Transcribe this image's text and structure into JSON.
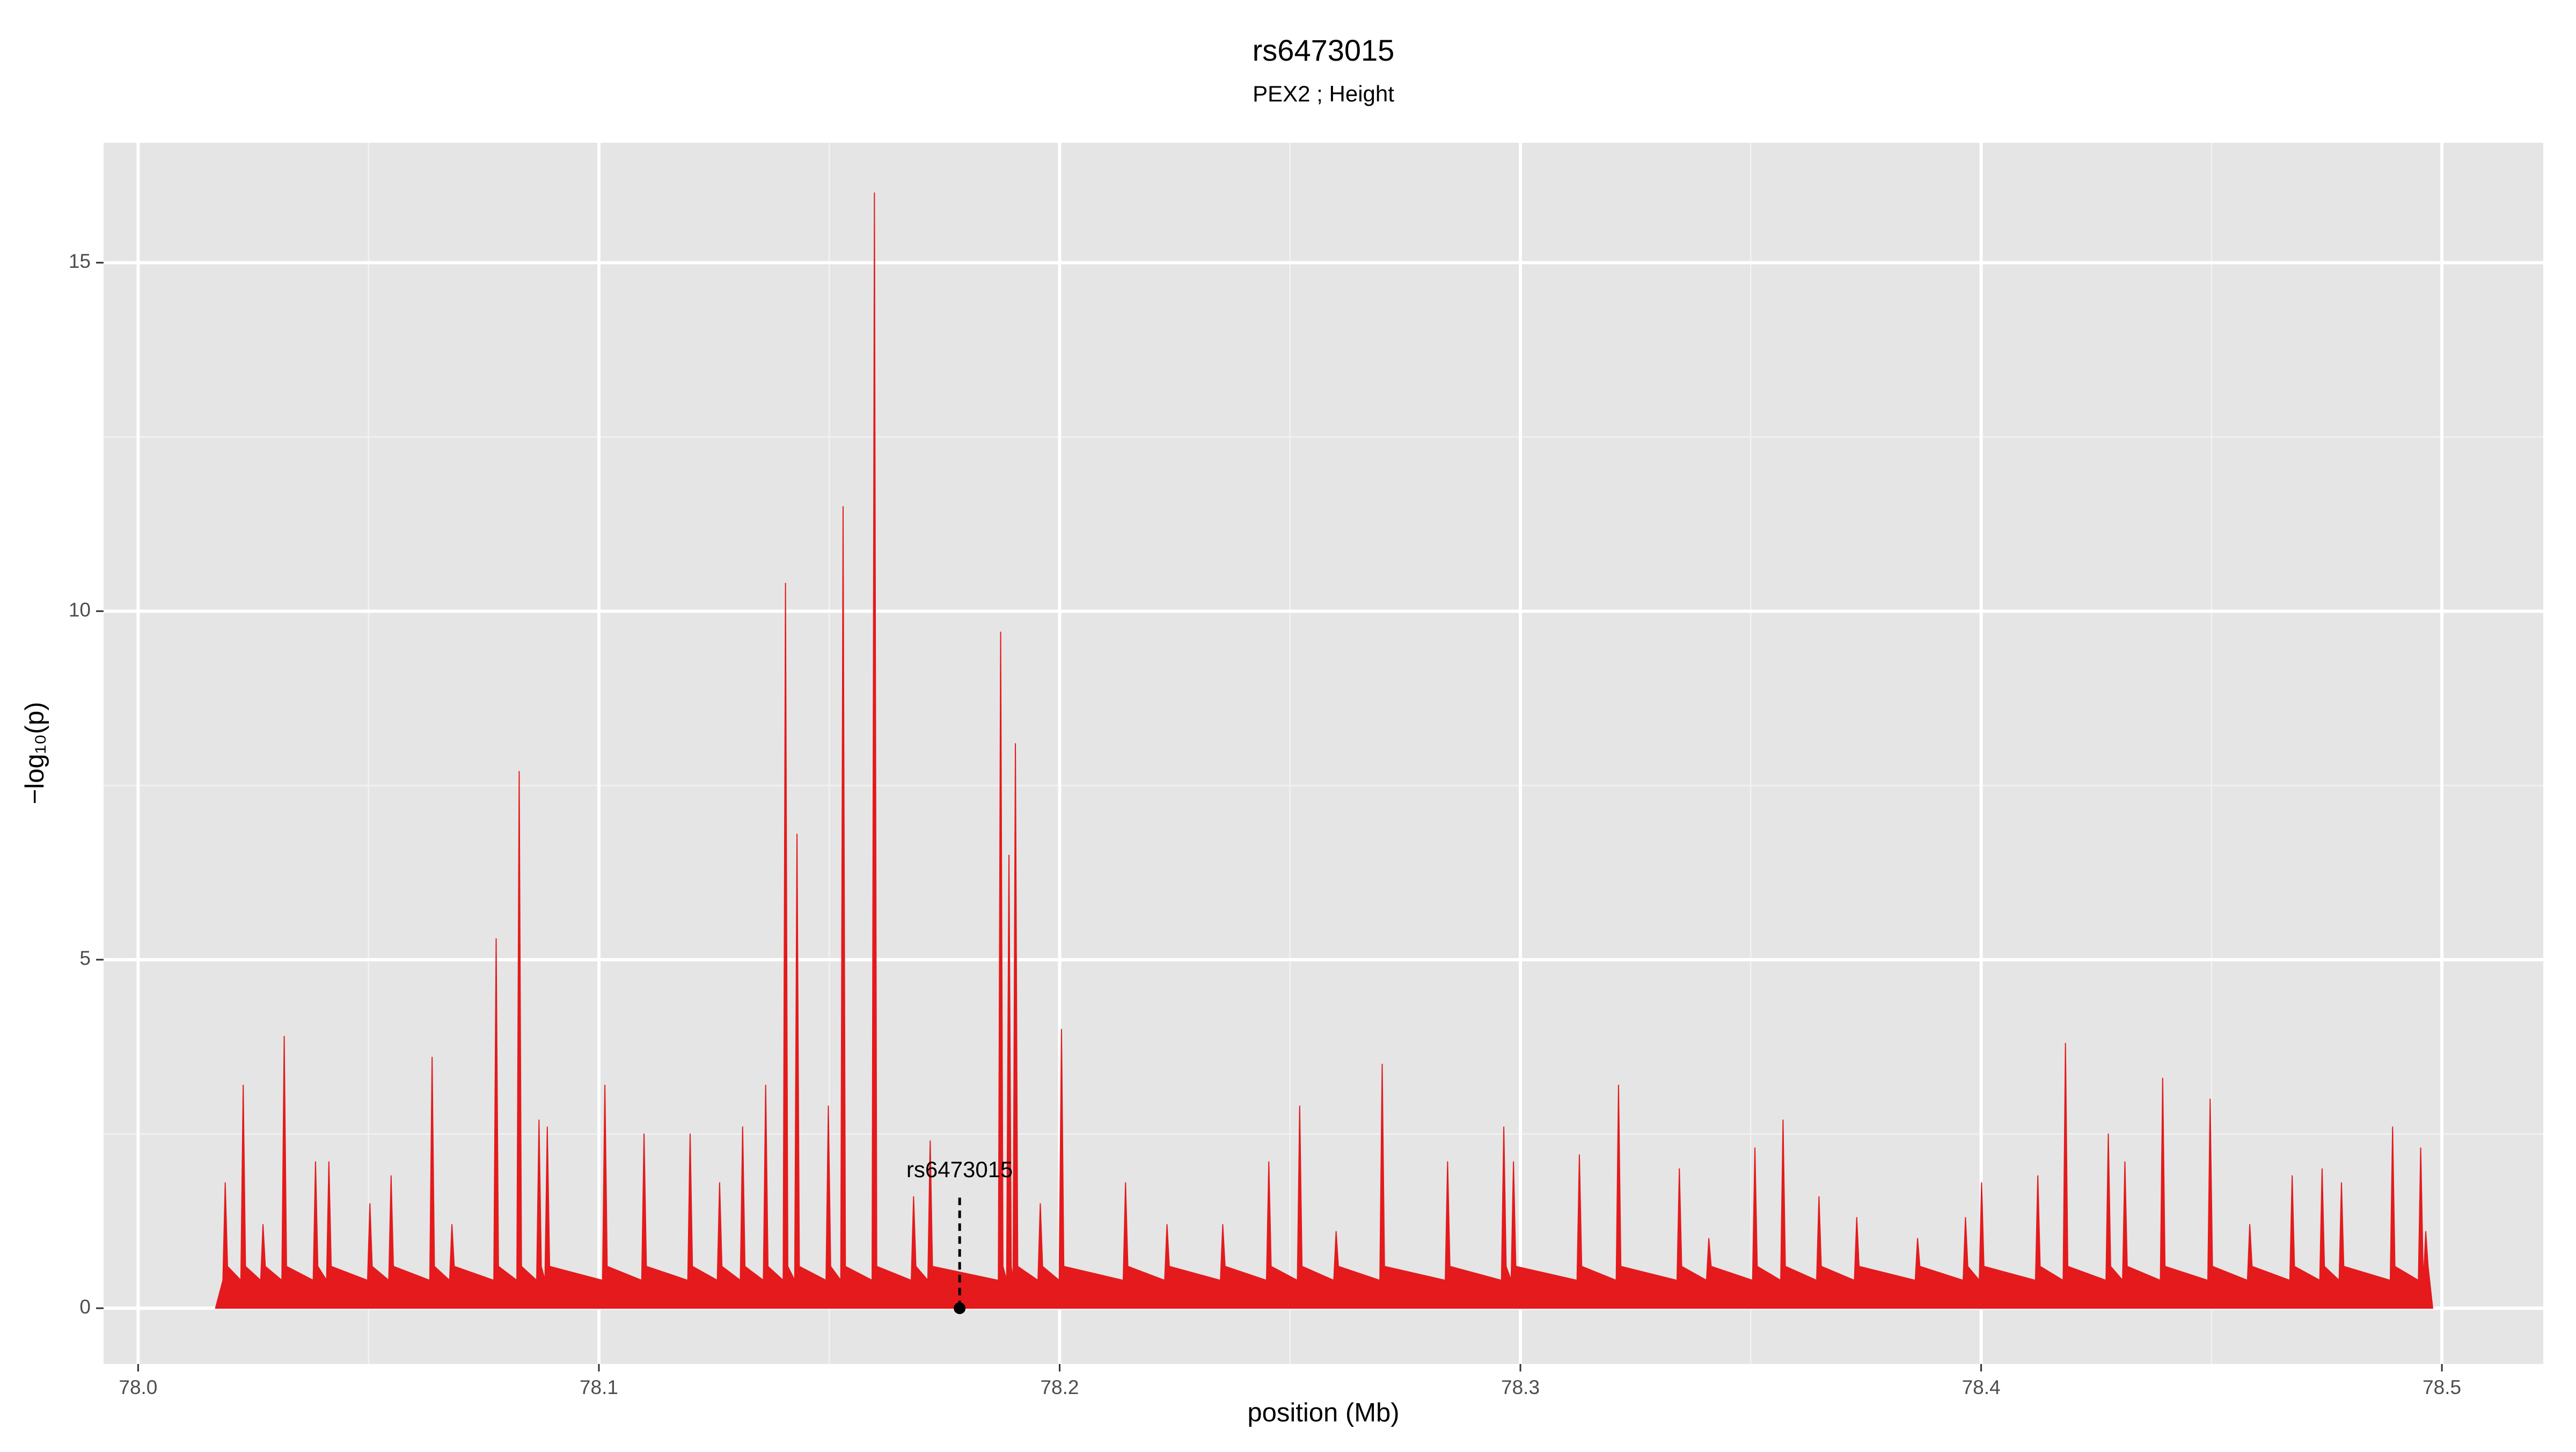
{
  "chart_data": {
    "type": "area",
    "title": "rs6473015",
    "subtitle": "PEX2 ; Height",
    "xlabel": "position (Mb)",
    "ylabel": "−log₁₀(p)",
    "color": "#e41a1c",
    "grid": true,
    "xlim": [
      77.9925,
      78.522
    ],
    "ylim": [
      -0.8,
      16.72
    ],
    "xticks": [
      {
        "value": 78,
        "label": "78.0"
      },
      78.1,
      78.2,
      78.3,
      78.4,
      78.5
    ],
    "yticks": [
      0,
      5,
      10,
      15
    ],
    "xminor": [
      78.05,
      78.15,
      78.25,
      78.35,
      78.45
    ],
    "yminor": [
      2.5,
      7.5,
      12.5
    ],
    "annotation": {
      "text": "rs6473015",
      "x": 78.1783,
      "y": 0
    },
    "x": [
      78.0168,
      78.0184,
      78.0189,
      78.0194,
      78.0223,
      78.0228,
      78.0233,
      78.0266,
      78.0271,
      78.0276,
      78.0312,
      78.0317,
      78.0322,
      78.038,
      78.0385,
      78.039,
      78.0409,
      78.0414,
      78.0419,
      78.0498,
      78.0503,
      78.0508,
      78.0544,
      78.0549,
      78.0554,
      78.0633,
      78.0638,
      78.0643,
      78.0676,
      78.0681,
      78.0686,
      78.0772,
      78.0777,
      78.0782,
      78.0822,
      78.0827,
      78.0832,
      78.0865,
      78.087,
      78.0875,
      78.0883,
      78.0888,
      78.0893,
      78.1008,
      78.1013,
      78.1018,
      78.1093,
      78.1098,
      78.1103,
      78.1193,
      78.1198,
      78.1203,
      78.1257,
      78.1262,
      78.1267,
      78.1307,
      78.1312,
      78.1317,
      78.1357,
      78.1362,
      78.1367,
      78.14,
      78.1405,
      78.141,
      78.1425,
      78.143,
      78.1435,
      78.1493,
      78.1498,
      78.1503,
      78.1525,
      78.153,
      78.1535,
      78.1593,
      78.1598,
      78.1603,
      78.1678,
      78.1683,
      78.1688,
      78.1714,
      78.1719,
      78.1724,
      78.1867,
      78.1872,
      78.1877,
      78.1885,
      78.189,
      78.1895,
      78.1899,
      78.1904,
      78.1909,
      78.1953,
      78.1958,
      78.1963,
      78.1999,
      78.2004,
      78.2009,
      78.2138,
      78.2143,
      78.2148,
      78.2228,
      78.2233,
      78.2238,
      78.2349,
      78.2354,
      78.2359,
      78.2449,
      78.2454,
      78.2459,
      78.2516,
      78.2521,
      78.2526,
      78.2595,
      78.26,
      78.2605,
      78.2695,
      78.27,
      78.2705,
      78.2837,
      78.2842,
      78.2847,
      78.2959,
      78.2964,
      78.2969,
      78.298,
      78.2985,
      78.299,
      78.3123,
      78.3128,
      78.3133,
      78.3208,
      78.3213,
      78.3218,
      78.334,
      78.3345,
      78.335,
      78.3404,
      78.3409,
      78.3414,
      78.3504,
      78.3509,
      78.3514,
      78.3565,
      78.357,
      78.3575,
      78.3643,
      78.3648,
      78.3653,
      78.3725,
      78.373,
      78.3735,
      78.3857,
      78.3862,
      78.3867,
      78.3961,
      78.3966,
      78.3971,
      78.3996,
      78.4001,
      78.4006,
      78.4118,
      78.4123,
      78.4128,
      78.4178,
      78.4183,
      78.4188,
      78.4271,
      78.4276,
      78.4281,
      78.4307,
      78.4312,
      78.4317,
      78.4389,
      78.4394,
      78.4399,
      78.4492,
      78.4497,
      78.4502,
      78.4578,
      78.4583,
      78.4588,
      78.467,
      78.4675,
      78.468,
      78.4735,
      78.474,
      78.4745,
      78.4777,
      78.4782,
      78.4787,
      78.4888,
      78.4893,
      78.4898,
      78.4949,
      78.4954,
      78.4959,
      78.496,
      78.4965,
      78.497,
      78.498
    ],
    "values": [
      0,
      0.4,
      1.8,
      0.6,
      0.4,
      3.2,
      0.6,
      0.4,
      1.2,
      0.6,
      0.4,
      3.9,
      0.6,
      0.4,
      2.1,
      0.6,
      0.4,
      2.1,
      0.6,
      0.4,
      1.5,
      0.6,
      0.4,
      1.9,
      0.6,
      0.4,
      3.6,
      0.6,
      0.4,
      1.2,
      0.6,
      0.4,
      5.3,
      0.6,
      0.4,
      7.7,
      0.6,
      0.4,
      2.7,
      0.6,
      0.4,
      2.6,
      0.6,
      0.4,
      3.2,
      0.6,
      0.4,
      2.5,
      0.6,
      0.4,
      2.5,
      0.6,
      0.4,
      1.8,
      0.6,
      0.4,
      2.6,
      0.6,
      0.4,
      3.2,
      0.6,
      0.4,
      10.4,
      0.6,
      0.4,
      6.8,
      0.6,
      0.4,
      2.9,
      0.6,
      0.4,
      11.5,
      0.6,
      0.4,
      16.0,
      0.6,
      0.4,
      1.6,
      0.6,
      0.4,
      2.4,
      0.6,
      0.4,
      9.7,
      0.6,
      0.4,
      6.5,
      0.6,
      0.4,
      8.1,
      0.6,
      0.4,
      1.5,
      0.6,
      0.4,
      4.0,
      0.6,
      0.4,
      1.8,
      0.6,
      0.4,
      1.2,
      0.6,
      0.4,
      1.2,
      0.6,
      0.4,
      2.1,
      0.6,
      0.4,
      2.9,
      0.6,
      0.4,
      1.1,
      0.6,
      0.4,
      3.5,
      0.6,
      0.4,
      2.1,
      0.6,
      0.4,
      2.6,
      0.6,
      0.4,
      2.1,
      0.6,
      0.4,
      2.2,
      0.6,
      0.4,
      3.2,
      0.6,
      0.4,
      2.0,
      0.6,
      0.4,
      1.0,
      0.6,
      0.4,
      2.3,
      0.6,
      0.4,
      2.7,
      0.6,
      0.4,
      1.6,
      0.6,
      0.4,
      1.3,
      0.6,
      0.4,
      1.0,
      0.6,
      0.4,
      1.3,
      0.6,
      0.4,
      1.8,
      0.6,
      0.4,
      1.9,
      0.6,
      0.4,
      3.8,
      0.6,
      0.4,
      2.5,
      0.6,
      0.4,
      2.1,
      0.6,
      0.4,
      3.3,
      0.6,
      0.4,
      3.0,
      0.6,
      0.4,
      1.2,
      0.6,
      0.4,
      1.9,
      0.6,
      0.4,
      2.0,
      0.6,
      0.4,
      1.8,
      0.6,
      0.4,
      2.6,
      0.6,
      0.4,
      2.3,
      0.6,
      0.4,
      1.1,
      0.6,
      0
    ]
  }
}
